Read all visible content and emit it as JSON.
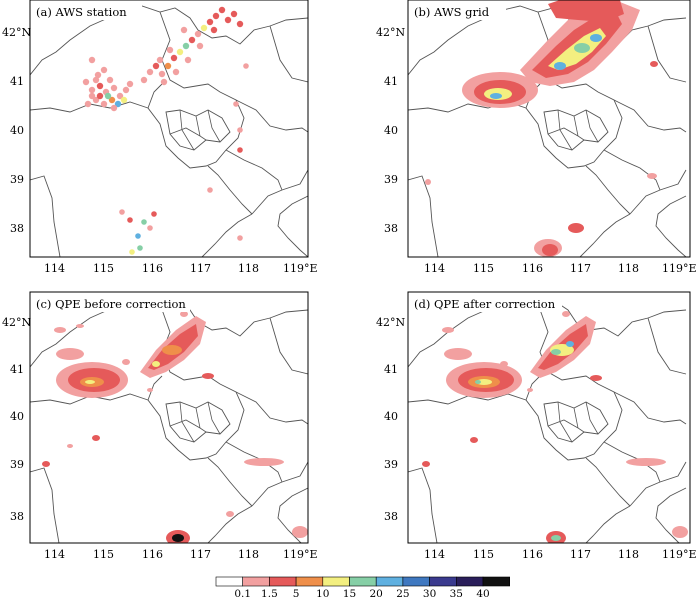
{
  "panels": [
    {
      "id": "a",
      "title": "(a) AWS station"
    },
    {
      "id": "b",
      "title": "(b) AWS grid"
    },
    {
      "id": "c",
      "title": "(c) QPE before correction"
    },
    {
      "id": "d",
      "title": "(d) QPE after correction"
    }
  ],
  "axes": {
    "lon_ticks": [
      "114",
      "115",
      "116",
      "117",
      "118",
      "119°E"
    ],
    "lat_ticks": [
      "42°N",
      "41",
      "40",
      "39",
      "38"
    ],
    "lon_range": [
      113.5,
      119.5
    ],
    "lat_range": [
      37.5,
      42.6
    ]
  },
  "colorbar": {
    "ticks": [
      "0.1",
      "1.5",
      "5",
      "10",
      "15",
      "20",
      "25",
      "30",
      "35",
      "40"
    ],
    "colors": [
      "#ffffff",
      "#f2a0a0",
      "#e55a5a",
      "#ef8f4a",
      "#f3ef80",
      "#86cfa6",
      "#5fb0e0",
      "#3f78c0",
      "#3a3a8e",
      "#2a1e5a",
      "#111111"
    ]
  }
}
